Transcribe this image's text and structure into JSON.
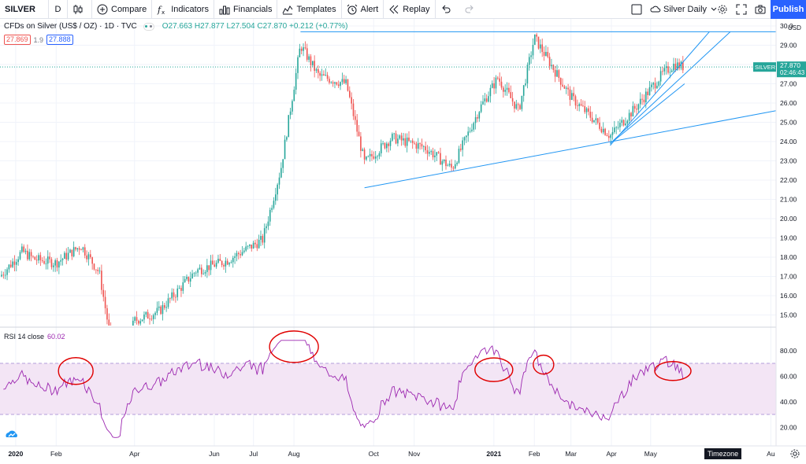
{
  "toolbar": {
    "symbol": "SILVER",
    "interval": "D",
    "compare": "Compare",
    "indicators": "Indicators",
    "financials": "Financials",
    "templates": "Templates",
    "alert": "Alert",
    "replay": "Replay",
    "layout_name": "Silver Daily",
    "publish": "Publish"
  },
  "legend": {
    "title": "CFDs on Silver (US$ / OZ) · 1D · TVC",
    "ohlc": "O27.663 H27.877 L27.504 C27.870 +0.212 (+0.77%)",
    "bid": "27.869",
    "spread": "1.9",
    "ask": "27.888"
  },
  "price_axis": {
    "currency": "USD",
    "ticks": [
      "30.0",
      "29.00",
      "28.00",
      "27.00",
      "26.00",
      "25.00",
      "24.00",
      "23.00",
      "22.00",
      "21.00",
      "20.00",
      "19.00",
      "18.00",
      "17.00",
      "16.00",
      "15.00"
    ],
    "last_label": "SILVER",
    "last_price": "27.870",
    "countdown": "02:46:43"
  },
  "time_axis": {
    "labels": [
      "2020",
      "Feb",
      "Apr",
      "Jun",
      "Jul",
      "Aug",
      "Oct",
      "Nov",
      "2021",
      "Feb",
      "Mar",
      "Apr",
      "May",
      "Au"
    ],
    "timezone": "Timezone"
  },
  "rsi": {
    "label": "RSI 14 close",
    "value": "60.02",
    "ticks": [
      "80.00",
      "60.00",
      "40.00",
      "20.00"
    ]
  },
  "colors": {
    "up": "#26a69a",
    "down": "#ef5350",
    "trendline": "#2196f3",
    "rsi_line": "#9c27b0",
    "rsi_band": "#f3e5f5",
    "annotation": "#e00000",
    "accent": "#2962ff"
  },
  "icons": [
    "candles-icon",
    "plus-circle-icon",
    "fx-icon",
    "bar-chart-icon",
    "templates-icon",
    "alarm-clock-icon",
    "replay-icon",
    "undo-icon",
    "redo-icon",
    "square-icon",
    "chevron-down-icon",
    "gear-icon",
    "fullscreen-icon",
    "camera-icon",
    "tradingview-logo-icon"
  ],
  "chart_data": {
    "type": "candlestick",
    "series": [
      {
        "name": "SILVER",
        "close_path": [
          [
            "2019-12-20",
            17.0
          ],
          [
            "2020-01-06",
            18.3
          ],
          [
            "2020-01-15",
            17.9
          ],
          [
            "2020-02-01",
            17.7
          ],
          [
            "2020-02-20",
            18.6
          ],
          [
            "2020-03-05",
            17.2
          ],
          [
            "2020-03-18",
            12.0
          ],
          [
            "2020-04-01",
            14.7
          ],
          [
            "2020-04-20",
            15.2
          ],
          [
            "2020-05-18",
            17.3
          ],
          [
            "2020-06-10",
            17.8
          ],
          [
            "2020-07-08",
            18.9
          ],
          [
            "2020-07-22",
            22.6
          ],
          [
            "2020-08-06",
            29.0
          ],
          [
            "2020-08-20",
            27.4
          ],
          [
            "2020-09-10",
            27.0
          ],
          [
            "2020-09-24",
            22.9
          ],
          [
            "2020-10-15",
            24.2
          ],
          [
            "2020-11-09",
            23.7
          ],
          [
            "2020-11-30",
            22.6
          ],
          [
            "2020-12-21",
            25.7
          ],
          [
            "2021-01-04",
            27.3
          ],
          [
            "2021-01-20",
            25.6
          ],
          [
            "2021-02-01",
            29.4
          ],
          [
            "2021-02-20",
            27.3
          ],
          [
            "2021-03-01",
            26.3
          ],
          [
            "2021-03-31",
            24.3
          ],
          [
            "2021-04-20",
            25.8
          ],
          [
            "2021-05-10",
            27.5
          ],
          [
            "2021-05-19",
            28.0
          ],
          [
            "2021-05-27",
            27.87
          ]
        ]
      }
    ],
    "rsi": {
      "overbought": 70,
      "oversold": 30,
      "y_range": [
        10,
        90
      ]
    },
    "ylim": [
      14.5,
      30
    ],
    "xlabel": "",
    "ylabel": ""
  }
}
